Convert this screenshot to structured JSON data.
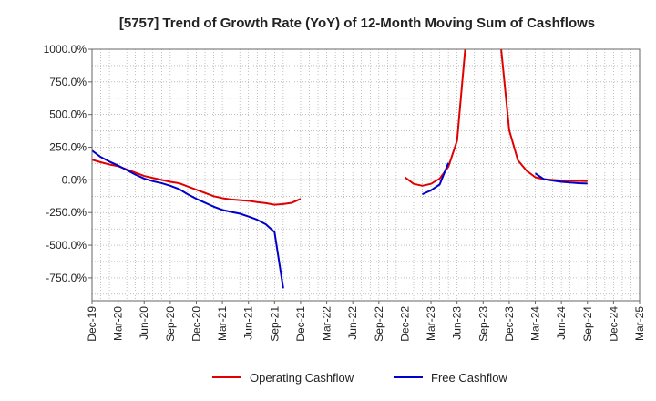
{
  "chart_data": {
    "type": "line",
    "title": "[5757]  Trend of Growth Rate (YoY) of 12-Month Moving Sum of Cashflows",
    "xlabel": "",
    "ylabel": "",
    "ylim": [
      -925,
      1000
    ],
    "yticks": [
      1000,
      750,
      500,
      250,
      0,
      -250,
      -500,
      -750
    ],
    "ytick_labels": [
      "1000.0%",
      "750.0%",
      "500.0%",
      "250.0%",
      "0.0%",
      "-250.0%",
      "-500.0%",
      "-750.0%"
    ],
    "x_start": "2019-12",
    "x_end": "2025-03",
    "xtick_labels": [
      "Dec-19",
      "Mar-20",
      "Jun-20",
      "Sep-20",
      "Dec-20",
      "Mar-21",
      "Jun-21",
      "Sep-21",
      "Dec-21",
      "Mar-22",
      "Jun-22",
      "Sep-22",
      "Dec-22",
      "Mar-23",
      "Jun-23",
      "Sep-23",
      "Dec-23",
      "Mar-24",
      "Jun-24",
      "Sep-24",
      "Dec-24",
      "Mar-25"
    ],
    "grid": true,
    "legend_position": "bottom",
    "series": [
      {
        "name": "Operating Cashflow",
        "color": "#e00000",
        "segments": [
          [
            [
              "2019-12",
              155
            ],
            [
              "2020-01",
              135
            ],
            [
              "2020-02",
              118
            ],
            [
              "2020-03",
              105
            ],
            [
              "2020-04",
              80
            ],
            [
              "2020-05",
              55
            ],
            [
              "2020-06",
              30
            ],
            [
              "2020-07",
              15
            ],
            [
              "2020-08",
              0
            ],
            [
              "2020-09",
              -15
            ],
            [
              "2020-10",
              -25
            ],
            [
              "2020-11",
              -50
            ],
            [
              "2020-12",
              -75
            ],
            [
              "2021-01",
              -100
            ],
            [
              "2021-02",
              -125
            ],
            [
              "2021-03",
              -140
            ],
            [
              "2021-04",
              -150
            ],
            [
              "2021-05",
              -155
            ],
            [
              "2021-06",
              -160
            ],
            [
              "2021-07",
              -170
            ],
            [
              "2021-08",
              -178
            ],
            [
              "2021-09",
              -190
            ],
            [
              "2021-10",
              -185
            ],
            [
              "2021-11",
              -175
            ],
            [
              "2021-12",
              -145
            ]
          ],
          [
            [
              "2022-12",
              20
            ],
            [
              "2023-01",
              -30
            ],
            [
              "2023-02",
              -45
            ],
            [
              "2023-03",
              -30
            ],
            [
              "2023-04",
              10
            ],
            [
              "2023-05",
              100
            ],
            [
              "2023-06",
              300
            ],
            [
              "2023-07",
              1050
            ]
          ],
          [
            [
              "2023-11",
              1050
            ],
            [
              "2023-12",
              380
            ],
            [
              "2024-01",
              150
            ],
            [
              "2024-02",
              70
            ],
            [
              "2024-03",
              20
            ],
            [
              "2024-04",
              5
            ],
            [
              "2024-05",
              0
            ],
            [
              "2024-06",
              -5
            ],
            [
              "2024-07",
              -5
            ],
            [
              "2024-08",
              -8
            ],
            [
              "2024-09",
              -10
            ]
          ]
        ]
      },
      {
        "name": "Free Cashflow",
        "color": "#0000cc",
        "segments": [
          [
            [
              "2019-12",
              225
            ],
            [
              "2020-01",
              175
            ],
            [
              "2020-02",
              140
            ],
            [
              "2020-03",
              110
            ],
            [
              "2020-04",
              75
            ],
            [
              "2020-05",
              40
            ],
            [
              "2020-06",
              10
            ],
            [
              "2020-07",
              -10
            ],
            [
              "2020-08",
              -25
            ],
            [
              "2020-09",
              -45
            ],
            [
              "2020-10",
              -70
            ],
            [
              "2020-11",
              -110
            ],
            [
              "2020-12",
              -145
            ],
            [
              "2021-01",
              -175
            ],
            [
              "2021-02",
              -205
            ],
            [
              "2021-03",
              -230
            ],
            [
              "2021-04",
              -245
            ],
            [
              "2021-05",
              -258
            ],
            [
              "2021-06",
              -280
            ],
            [
              "2021-07",
              -305
            ],
            [
              "2021-08",
              -340
            ],
            [
              "2021-09",
              -400
            ],
            [
              "2021-10",
              -830
            ]
          ],
          [
            [
              "2023-02",
              -110
            ],
            [
              "2023-03",
              -80
            ],
            [
              "2023-04",
              -35
            ],
            [
              "2023-05",
              130
            ]
          ],
          [
            [
              "2024-03",
              50
            ],
            [
              "2024-04",
              5
            ],
            [
              "2024-05",
              -5
            ],
            [
              "2024-06",
              -15
            ],
            [
              "2024-07",
              -20
            ],
            [
              "2024-08",
              -25
            ],
            [
              "2024-09",
              -28
            ]
          ]
        ]
      }
    ]
  }
}
